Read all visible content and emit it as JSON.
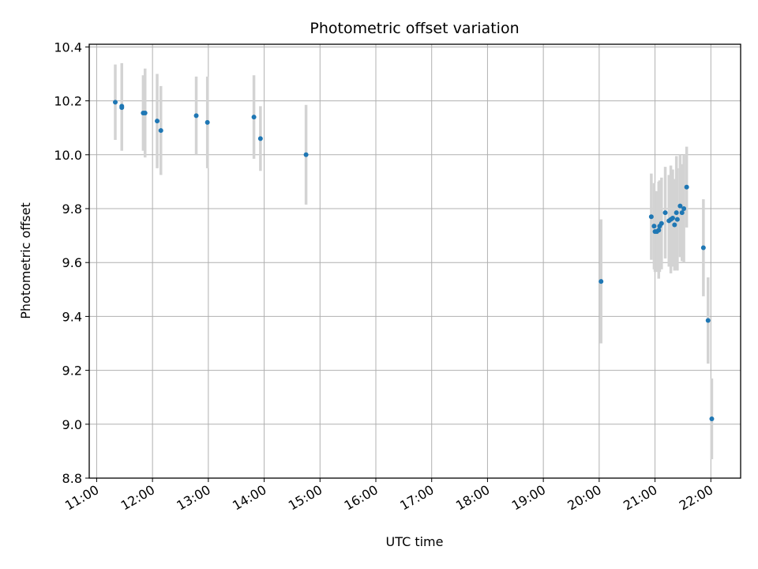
{
  "chart_data": {
    "type": "scatter",
    "title": "Photometric offset variation",
    "xlabel": "UTC time",
    "ylabel": "Photometric offset",
    "xlim": [
      "10:52",
      "22:32"
    ],
    "ylim": [
      8.8,
      10.41
    ],
    "xticks": [
      "11:00",
      "12:00",
      "13:00",
      "14:00",
      "15:00",
      "16:00",
      "17:00",
      "18:00",
      "19:00",
      "20:00",
      "21:00",
      "22:00"
    ],
    "yticks": [
      "8.8",
      "9.0",
      "9.2",
      "9.4",
      "9.6",
      "9.8",
      "10.0",
      "10.2",
      "10.4"
    ],
    "grid": true,
    "colors": {
      "points": "#1f77b4",
      "errorbars": "#d3d3d3",
      "grid": "#b0b0b0"
    },
    "points": [
      {
        "x": "11:20",
        "y": 10.195,
        "err": 0.14
      },
      {
        "x": "11:27",
        "y": 10.18,
        "err": 0.16
      },
      {
        "x": "11:27",
        "y": 10.175,
        "err": 0.16
      },
      {
        "x": "11:50",
        "y": 10.155,
        "err": 0.14
      },
      {
        "x": "11:52",
        "y": 10.155,
        "err": 0.165
      },
      {
        "x": "12:05",
        "y": 10.125,
        "err": 0.175
      },
      {
        "x": "12:09",
        "y": 10.09,
        "err": 0.165
      },
      {
        "x": "12:47",
        "y": 10.145,
        "err": 0.145
      },
      {
        "x": "12:59",
        "y": 10.12,
        "err": 0.17
      },
      {
        "x": "13:49",
        "y": 10.14,
        "err": 0.155
      },
      {
        "x": "13:56",
        "y": 10.06,
        "err": 0.12
      },
      {
        "x": "14:45",
        "y": 10.0,
        "err": 0.185
      },
      {
        "x": "20:02",
        "y": 9.53,
        "err": 0.23
      },
      {
        "x": "20:56",
        "y": 9.77,
        "err": 0.16
      },
      {
        "x": "20:59",
        "y": 9.735,
        "err": 0.16
      },
      {
        "x": "21:00",
        "y": 9.715,
        "err": 0.15
      },
      {
        "x": "21:02",
        "y": 9.715,
        "err": 0.15
      },
      {
        "x": "21:04",
        "y": 9.72,
        "err": 0.18
      },
      {
        "x": "21:05",
        "y": 9.735,
        "err": 0.17
      },
      {
        "x": "21:07",
        "y": 9.745,
        "err": 0.17
      },
      {
        "x": "21:11",
        "y": 9.785,
        "err": 0.17
      },
      {
        "x": "21:15",
        "y": 9.755,
        "err": 0.17
      },
      {
        "x": "21:17",
        "y": 9.76,
        "err": 0.2
      },
      {
        "x": "21:19",
        "y": 9.765,
        "err": 0.18
      },
      {
        "x": "21:21",
        "y": 9.74,
        "err": 0.17
      },
      {
        "x": "21:23",
        "y": 9.785,
        "err": 0.21
      },
      {
        "x": "21:24",
        "y": 9.76,
        "err": 0.19
      },
      {
        "x": "21:27",
        "y": 9.81,
        "err": 0.19
      },
      {
        "x": "21:29",
        "y": 9.785,
        "err": 0.18
      },
      {
        "x": "21:31",
        "y": 9.8,
        "err": 0.2
      },
      {
        "x": "21:34",
        "y": 9.88,
        "err": 0.15
      },
      {
        "x": "21:52",
        "y": 9.655,
        "err": 0.18
      },
      {
        "x": "21:57",
        "y": 9.385,
        "err": 0.16
      },
      {
        "x": "22:01",
        "y": 9.02,
        "err": 0.15
      }
    ]
  }
}
